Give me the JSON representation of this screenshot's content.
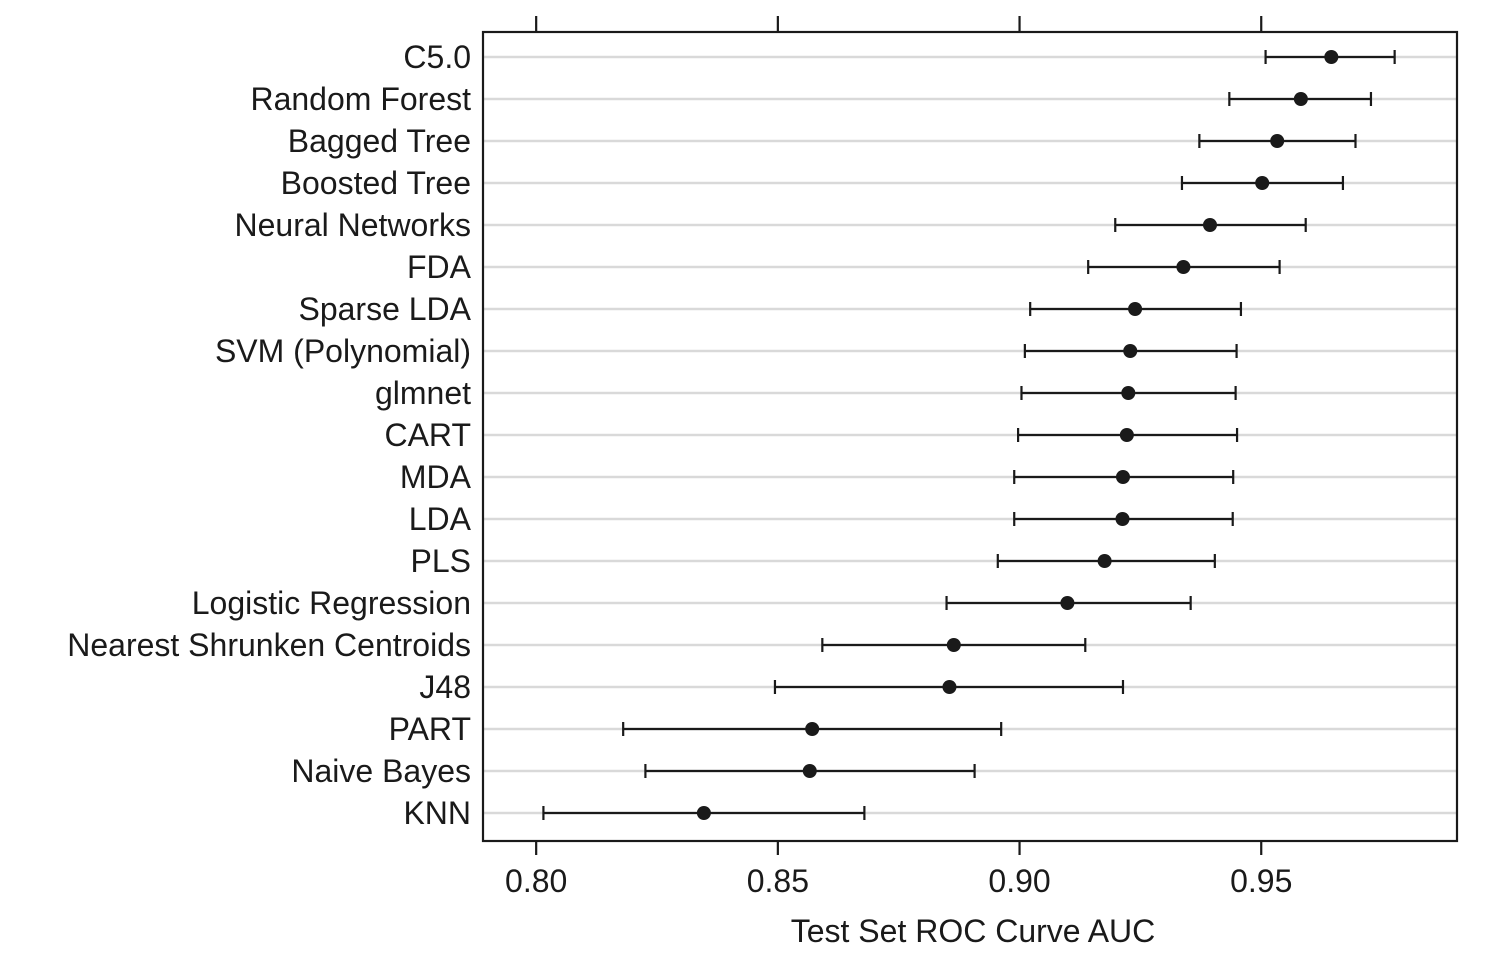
{
  "chart_data": {
    "type": "dotplot",
    "xlabel": "Test Set ROC Curve AUC",
    "xlim": [
      0.789,
      0.9905
    ],
    "xticks": [
      0.8,
      0.85,
      0.9,
      0.95
    ],
    "xtick_labels": [
      "0.80",
      "0.85",
      "0.90",
      "0.95"
    ],
    "grid": "horizontal",
    "categories": [
      "C5.0",
      "Random Forest",
      "Bagged Tree",
      "Boosted Tree",
      "Neural Networks",
      "FDA",
      "Sparse LDA",
      "SVM (Polynomial)",
      "glmnet",
      "CART",
      "MDA",
      "LDA",
      "PLS",
      "Logistic Regression",
      "Nearest Shrunken Centroids",
      "J48",
      "PART",
      "Naive Bayes",
      "KNN"
    ],
    "series": [
      {
        "estimate": [
          0.9645,
          0.9582,
          0.9533,
          0.9502,
          0.9394,
          0.9339,
          0.9239,
          0.9229,
          0.9225,
          0.9222,
          0.9214,
          0.9213,
          0.9176,
          0.9099,
          0.8864,
          0.8855,
          0.8571,
          0.8566,
          0.8347
        ],
        "lower": [
          0.9509,
          0.9434,
          0.9372,
          0.9336,
          0.9198,
          0.9142,
          0.9022,
          0.9011,
          0.9004,
          0.8997,
          0.8989,
          0.8989,
          0.8955,
          0.8849,
          0.8592,
          0.8494,
          0.818,
          0.8226,
          0.8015
        ],
        "upper": [
          0.9776,
          0.9727,
          0.9695,
          0.9669,
          0.9592,
          0.9538,
          0.9458,
          0.9449,
          0.9447,
          0.945,
          0.9442,
          0.9441,
          0.9404,
          0.9354,
          0.9136,
          0.9214,
          0.8962,
          0.8907,
          0.8679
        ]
      }
    ]
  }
}
